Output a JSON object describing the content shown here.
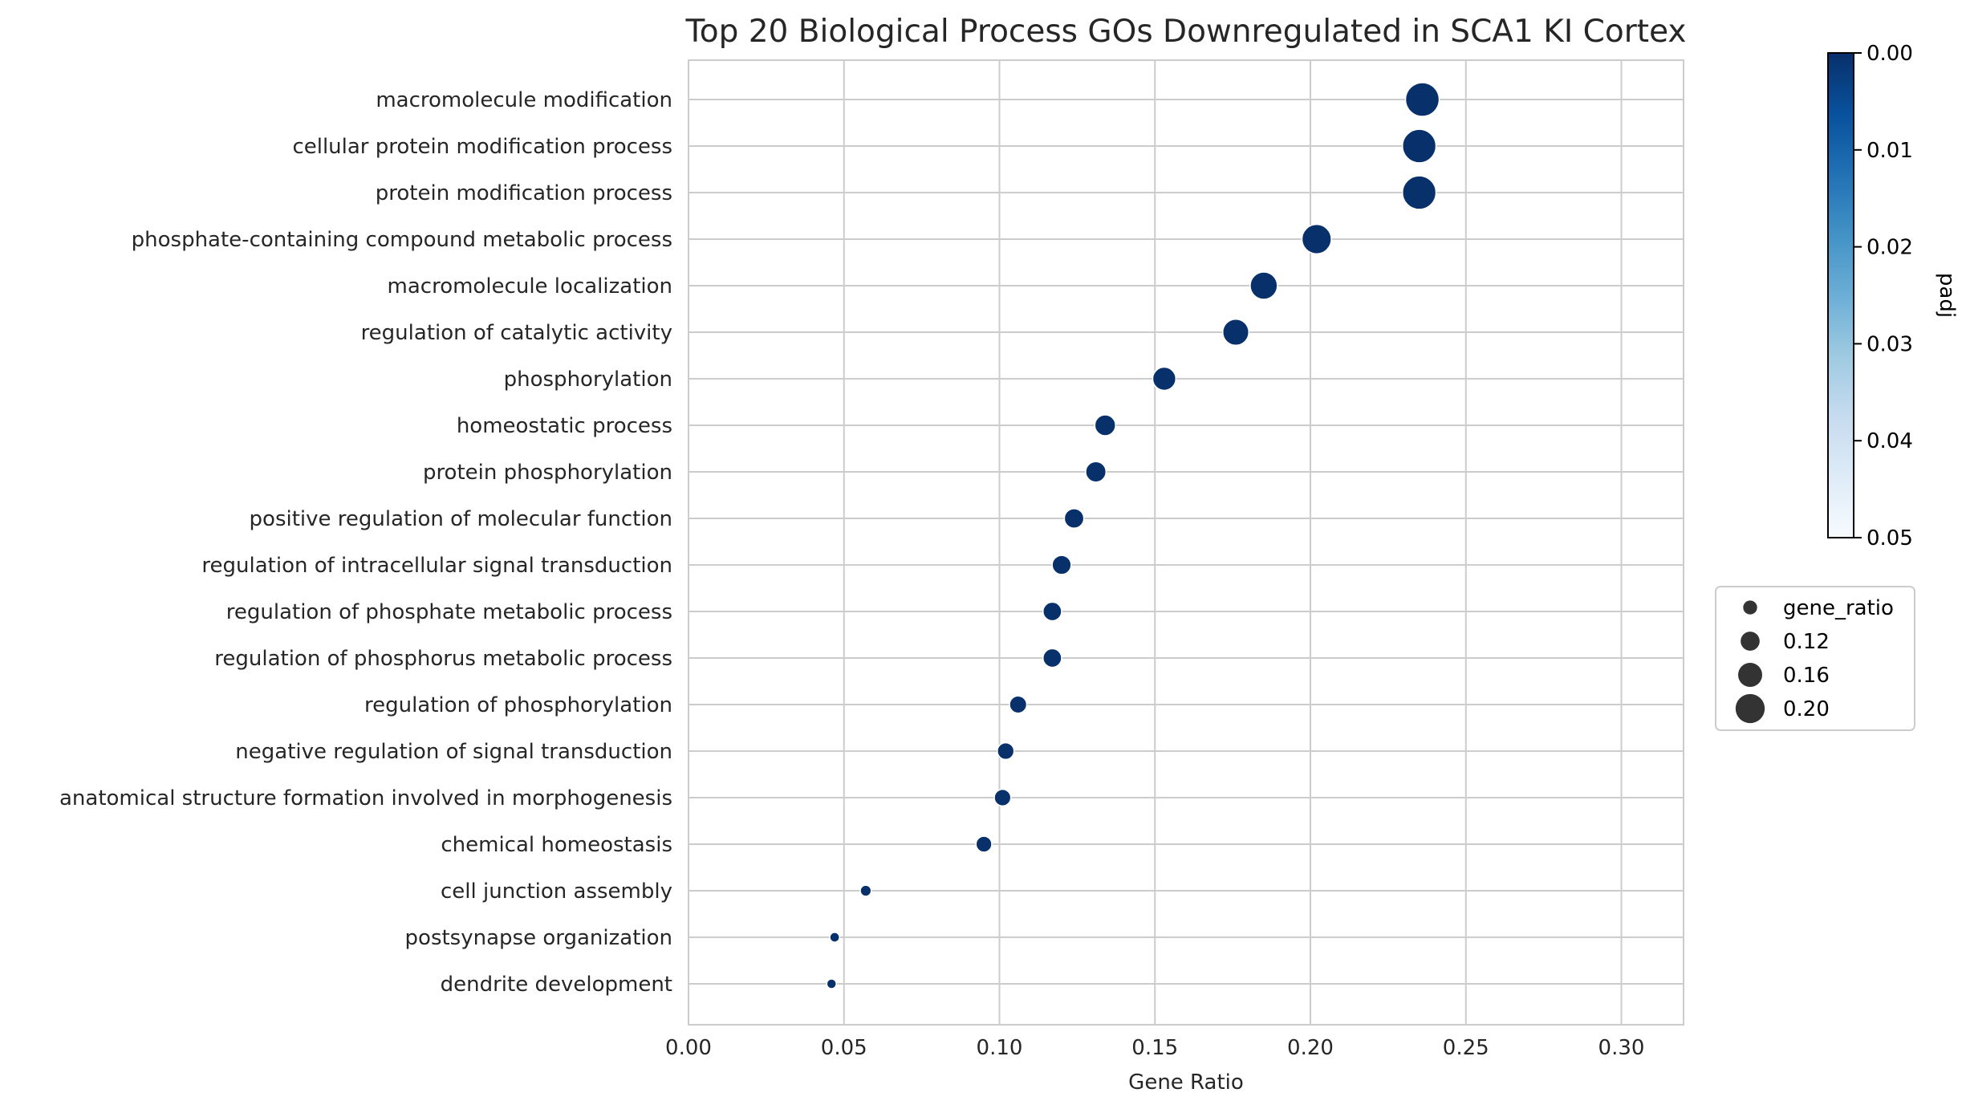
{
  "chart_data": {
    "type": "scatter",
    "title": "Top 20 Biological Process GOs Downregulated in SCA1 KI Cortex",
    "xlabel": "Gene Ratio",
    "ylabel": "",
    "xlim": [
      0.0,
      0.32
    ],
    "xticks": [
      "0.00",
      "0.05",
      "0.10",
      "0.15",
      "0.20",
      "0.25",
      "0.30"
    ],
    "xtick_values": [
      0.0,
      0.05,
      0.1,
      0.15,
      0.2,
      0.25,
      0.3
    ],
    "grid": true,
    "point_color": "#08306b",
    "categories": [
      "macromolecule modification",
      "cellular protein modification process",
      "protein modification process",
      "phosphate-containing compound metabolic process",
      "macromolecule localization",
      "regulation of catalytic activity",
      "phosphorylation",
      "homeostatic process",
      "protein phosphorylation",
      "positive regulation of molecular function",
      "regulation of intracellular signal transduction",
      "regulation of phosphate metabolic process",
      "regulation of phosphorus metabolic process",
      "regulation of phosphorylation",
      "negative regulation of signal transduction",
      "anatomical structure formation involved in morphogenesis",
      "chemical homeostasis",
      "cell junction assembly",
      "postsynapse organization",
      "dendrite development"
    ],
    "x": [
      0.236,
      0.235,
      0.235,
      0.202,
      0.185,
      0.176,
      0.153,
      0.134,
      0.131,
      0.124,
      0.12,
      0.117,
      0.117,
      0.106,
      0.102,
      0.101,
      0.095,
      0.057,
      0.047,
      0.046
    ],
    "colorbar": {
      "label": "padj",
      "range": [
        0.0,
        0.05
      ],
      "ticks": [
        "0.00",
        "0.01",
        "0.02",
        "0.03",
        "0.04",
        "0.05"
      ],
      "tick_values": [
        0.0,
        0.01,
        0.02,
        0.03,
        0.04,
        0.05
      ],
      "colors": [
        "#08306b",
        "#08519c",
        "#2171b5",
        "#4292c6",
        "#6baed6",
        "#9ecae1",
        "#c6dbef",
        "#deebf7",
        "#f7fbff"
      ]
    },
    "size_legend": {
      "title": "gene_ratio",
      "entries": [
        {
          "label": "0.12",
          "value": 0.12
        },
        {
          "label": "0.16",
          "value": 0.16
        },
        {
          "label": "0.20",
          "value": 0.2
        }
      ],
      "title_marker_value": 0.08,
      "marker_color": "#333333",
      "placement": "right"
    }
  }
}
